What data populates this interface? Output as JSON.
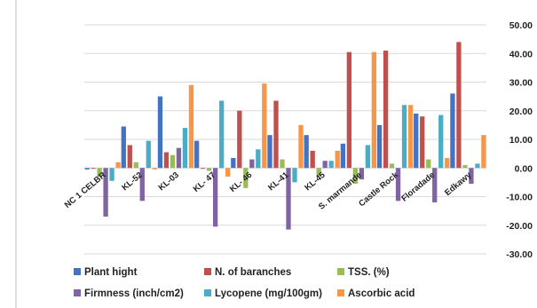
{
  "chart_data": {
    "type": "bar",
    "categories": [
      "NC 1 CELBR",
      "KL-52",
      "KL-03",
      "KL- 47",
      "KL- 46",
      "KL-41",
      "KL-45",
      "S. marmande",
      "Castle Rock",
      "Floradade",
      "Edkawy"
    ],
    "series": [
      {
        "name": "Plant hight",
        "color": "#4472C4",
        "values": [
          -0.5,
          14.5,
          25.0,
          9.5,
          3.5,
          11.5,
          11.5,
          8.5,
          15.0,
          19.0,
          26.0
        ]
      },
      {
        "name": "N. of baranches",
        "color": "#C0504D",
        "values": [
          -0.3,
          8.0,
          5.5,
          -0.3,
          20.0,
          23.5,
          6.0,
          40.5,
          41.0,
          18.0,
          44.0
        ]
      },
      {
        "name": "TSS. (%)",
        "color": "#9BBB59",
        "values": [
          -3.0,
          2.0,
          4.5,
          -1.0,
          -7.0,
          3.0,
          -3.0,
          -5.5,
          1.5,
          3.0,
          1.0
        ]
      },
      {
        "name": "Firmness (inch/cm2)",
        "color": "#8064A2",
        "values": [
          -17.0,
          -11.5,
          7.0,
          -20.5,
          3.0,
          -21.5,
          2.5,
          -4.0,
          -11.5,
          -12.0,
          -5.5
        ]
      },
      {
        "name": "Lycopene (mg/100gm)",
        "color": "#4BACC6",
        "values": [
          -4.5,
          9.5,
          14.0,
          23.5,
          6.5,
          -5.0,
          2.5,
          8.0,
          22.0,
          18.5,
          1.5
        ]
      },
      {
        "name": "Ascorbic acid",
        "color": "#F79646",
        "values": [
          2.0,
          -0.5,
          29.0,
          -3.0,
          29.5,
          15.0,
          6.0,
          40.5,
          22.0,
          3.5,
          11.5
        ]
      }
    ],
    "ylim": [
      -30,
      50
    ],
    "yticks": [
      50,
      40,
      30,
      20,
      10,
      0,
      -10,
      -20,
      -30
    ],
    "ytick_labels": [
      "50.00",
      "40.00",
      "30.00",
      "20.00",
      "10.00",
      "0.00",
      "-10.00",
      "-20.00",
      "-30.00"
    ],
    "y_axis_side": "right",
    "grid": true,
    "legend_position": "bottom",
    "title": "",
    "xlabel": "",
    "ylabel": ""
  }
}
